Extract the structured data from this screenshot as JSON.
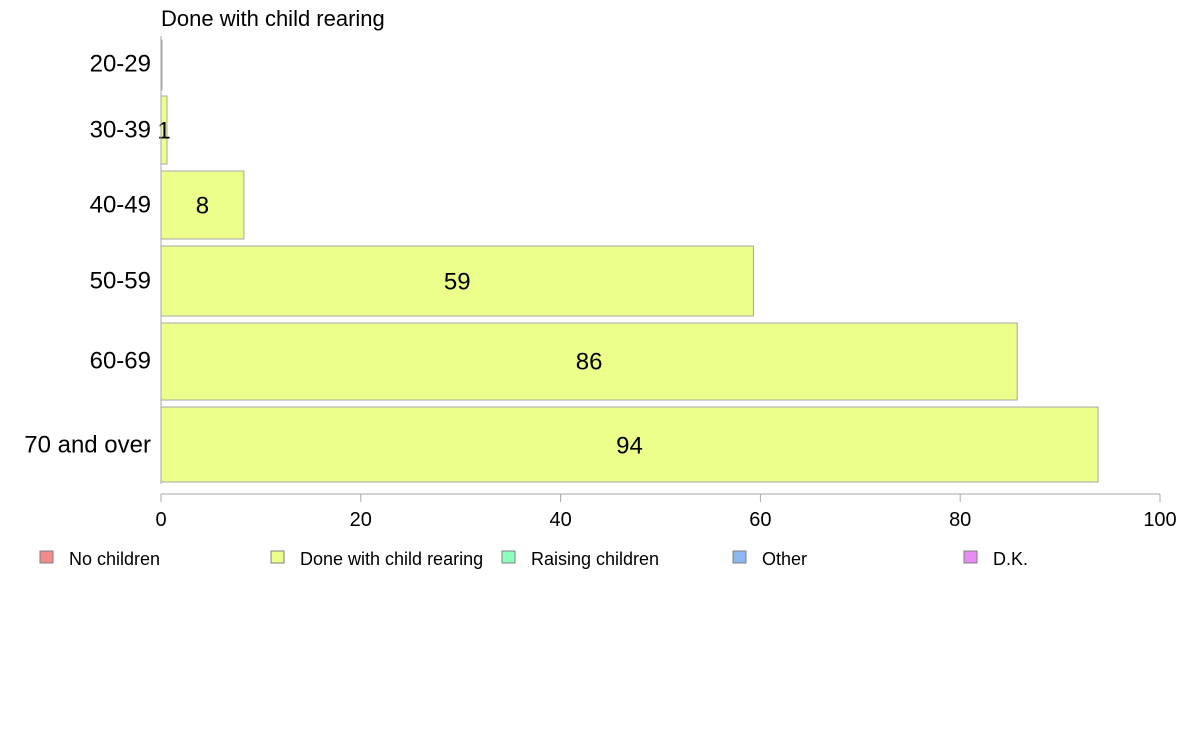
{
  "chart_data": {
    "type": "bar",
    "orientation": "horizontal",
    "title": "Done with child rearing",
    "categories": [
      "20-29",
      "30-39",
      "40-49",
      "50-59",
      "60-69",
      "70 and over"
    ],
    "series": [
      {
        "name": "Done with child rearing",
        "values": [
          0,
          1,
          8,
          59,
          86,
          94
        ]
      }
    ],
    "data_labels": [
      "",
      "1",
      "8",
      "59",
      "86",
      "94"
    ],
    "bar_values_plotted": [
      0.06,
      0.6,
      8.3,
      59.3,
      85.7,
      93.8
    ],
    "xlim": [
      0,
      100
    ],
    "xticks": [
      0,
      20,
      40,
      60,
      80,
      100
    ],
    "xtick_labels": [
      "0",
      "20",
      "40",
      "60",
      "80",
      "100"
    ],
    "grid": false,
    "legend_position": "bottom",
    "legend": [
      {
        "label": "No children",
        "color": "#f28b8b"
      },
      {
        "label": "Done with child rearing",
        "color": "#ecff8b"
      },
      {
        "label": "Raising children",
        "color": "#8bffbb"
      },
      {
        "label": "Other",
        "color": "#8bb8f2"
      },
      {
        "label": "D.K.",
        "color": "#e88bf2"
      }
    ],
    "bar_color": "#ecff8b",
    "bar_stroke": "#a7a7a7",
    "axis_color": "#a7a7a7"
  }
}
